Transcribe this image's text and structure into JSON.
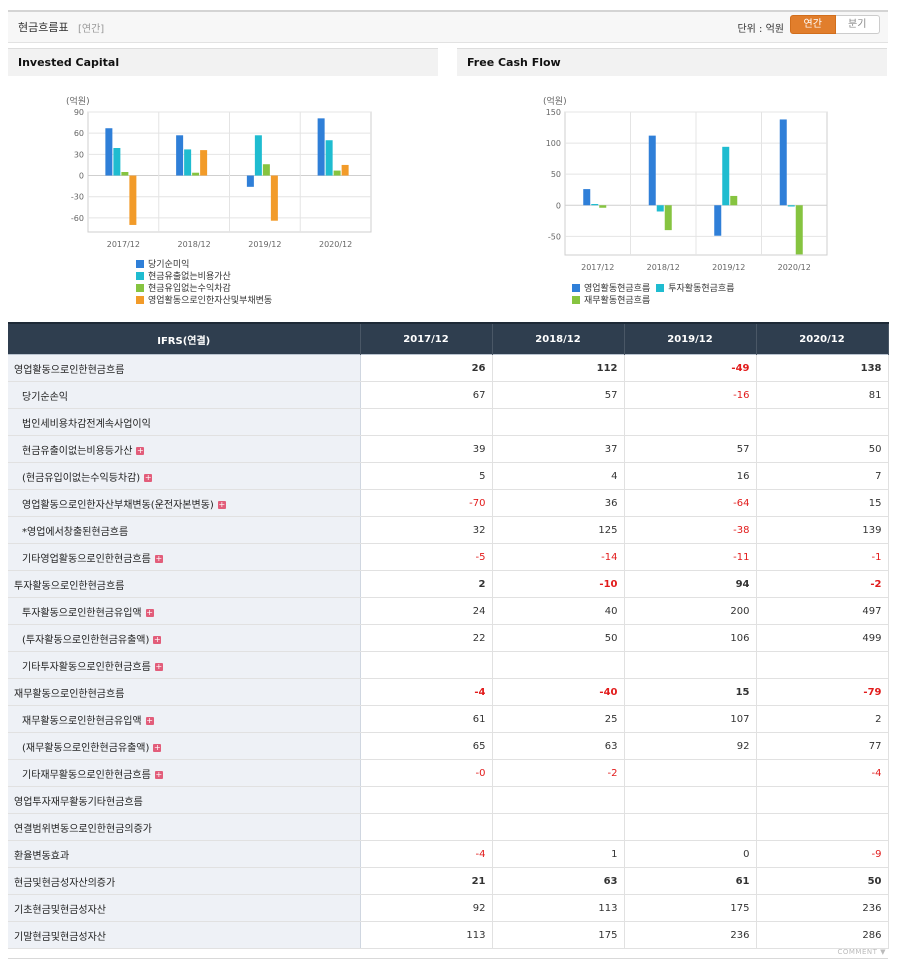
{
  "header": {
    "title": "현금흐름표",
    "period": "[연간]",
    "unit": "단위 : 억원",
    "toggle": [
      "연간",
      "분기"
    ]
  },
  "colors": {
    "blue": "#2f7fd8",
    "cyan": "#1fbcd0",
    "green": "#86c440",
    "orange": "#f29b29",
    "negative": "#e21b1b",
    "header_bg": "#2f3e4f"
  },
  "chart_data": [
    {
      "type": "bar",
      "title": "Invested Capital",
      "ylabel": "(억원)",
      "categories": [
        "2017/12",
        "2018/12",
        "2019/12",
        "2020/12"
      ],
      "ylim": [
        -80,
        90
      ],
      "yticks": [
        90,
        60,
        30,
        0,
        -30,
        -60
      ],
      "series": [
        {
          "name": "당기순미익",
          "color": "#2f7fd8",
          "values": [
            67,
            57,
            -16,
            81
          ]
        },
        {
          "name": "현금유출없는비용가산",
          "color": "#1fbcd0",
          "values": [
            39,
            37,
            57,
            50
          ]
        },
        {
          "name": "현금유입없는수익차감",
          "color": "#86c440",
          "values": [
            5,
            4,
            16,
            7
          ]
        },
        {
          "name": "영업활동으로인한자산및부채변동",
          "color": "#f29b29",
          "values": [
            -70,
            36,
            -64,
            15
          ]
        }
      ]
    },
    {
      "type": "bar",
      "title": "Free Cash Flow",
      "ylabel": "(억원)",
      "categories": [
        "2017/12",
        "2018/12",
        "2019/12",
        "2020/12"
      ],
      "ylim": [
        -80,
        150
      ],
      "yticks": [
        150,
        100,
        50,
        0,
        -50
      ],
      "series": [
        {
          "name": "영업활동현금흐름",
          "color": "#2f7fd8",
          "values": [
            26,
            112,
            -49,
            138
          ]
        },
        {
          "name": "투자활동현금흐름",
          "color": "#1fbcd0",
          "values": [
            2,
            -10,
            94,
            -2
          ]
        },
        {
          "name": "재무활동현금흐름",
          "color": "#86c440",
          "values": [
            -4,
            -40,
            15,
            -79
          ]
        }
      ]
    }
  ],
  "table": {
    "header": [
      "IFRS(연결)",
      "2017/12",
      "2018/12",
      "2019/12",
      "2020/12"
    ],
    "rows": [
      {
        "label": "영업활동으로인한현금흐름",
        "values": [
          "26",
          "112",
          "-49",
          "138"
        ],
        "major": true
      },
      {
        "label": "당기순손익",
        "values": [
          "67",
          "57",
          "-16",
          "81"
        ]
      },
      {
        "label": "법인세비용차감전계속사업이익",
        "values": [
          "",
          "",
          "",
          ""
        ]
      },
      {
        "label": "현금유출이없는비용등가산",
        "values": [
          "39",
          "37",
          "57",
          "50"
        ],
        "plus": true
      },
      {
        "label": "(현금유입이없는수익등차감)",
        "values": [
          "5",
          "4",
          "16",
          "7"
        ],
        "plus": true
      },
      {
        "label": "영업활동으로인한자산부채변동(운전자본변동)",
        "values": [
          "-70",
          "36",
          "-64",
          "15"
        ],
        "plus": true
      },
      {
        "label": "*영업에서창출된현금흐름",
        "values": [
          "32",
          "125",
          "-38",
          "139"
        ]
      },
      {
        "label": "기타영업활동으로인한현금흐름",
        "values": [
          "-5",
          "-14",
          "-11",
          "-1"
        ],
        "plus": true
      },
      {
        "label": "투자활동으로인한현금흐름",
        "values": [
          "2",
          "-10",
          "94",
          "-2"
        ],
        "major": true
      },
      {
        "label": "투자활동으로인한현금유입액",
        "values": [
          "24",
          "40",
          "200",
          "497"
        ],
        "plus": true
      },
      {
        "label": "(투자활동으로인한현금유출액)",
        "values": [
          "22",
          "50",
          "106",
          "499"
        ],
        "plus": true
      },
      {
        "label": "기타투자활동으로인한현금흐름",
        "values": [
          "",
          "",
          "",
          ""
        ],
        "plus": true
      },
      {
        "label": "재무활동으로인한현금흐름",
        "values": [
          "-4",
          "-40",
          "15",
          "-79"
        ],
        "major": true
      },
      {
        "label": "재무활동으로인한현금유입액",
        "values": [
          "61",
          "25",
          "107",
          "2"
        ],
        "plus": true
      },
      {
        "label": "(재무활동으로인한현금유출액)",
        "values": [
          "65",
          "63",
          "92",
          "77"
        ],
        "plus": true
      },
      {
        "label": "기타재무활동으로인한현금흐름",
        "values": [
          "-0",
          "-2",
          "",
          "-4"
        ],
        "plus": true
      },
      {
        "label": "영업투자재무활동기타현금흐름",
        "values": [
          "",
          "",
          "",
          ""
        ],
        "top": true
      },
      {
        "label": "연결범위변동으로인한현금의증가",
        "values": [
          "",
          "",
          "",
          ""
        ],
        "top": true
      },
      {
        "label": "환율변동효과",
        "values": [
          "-4",
          "1",
          "0",
          "-9"
        ],
        "top": true
      },
      {
        "label": "현금및현금성자산의증가",
        "values": [
          "21",
          "63",
          "61",
          "50"
        ],
        "major": true
      },
      {
        "label": "기초현금및현금성자산",
        "values": [
          "92",
          "113",
          "175",
          "236"
        ],
        "top": true
      },
      {
        "label": "기말현금및현금성자산",
        "values": [
          "113",
          "175",
          "236",
          "286"
        ],
        "top": true
      }
    ]
  },
  "footer": {
    "comment": "COMMENT ▼"
  }
}
